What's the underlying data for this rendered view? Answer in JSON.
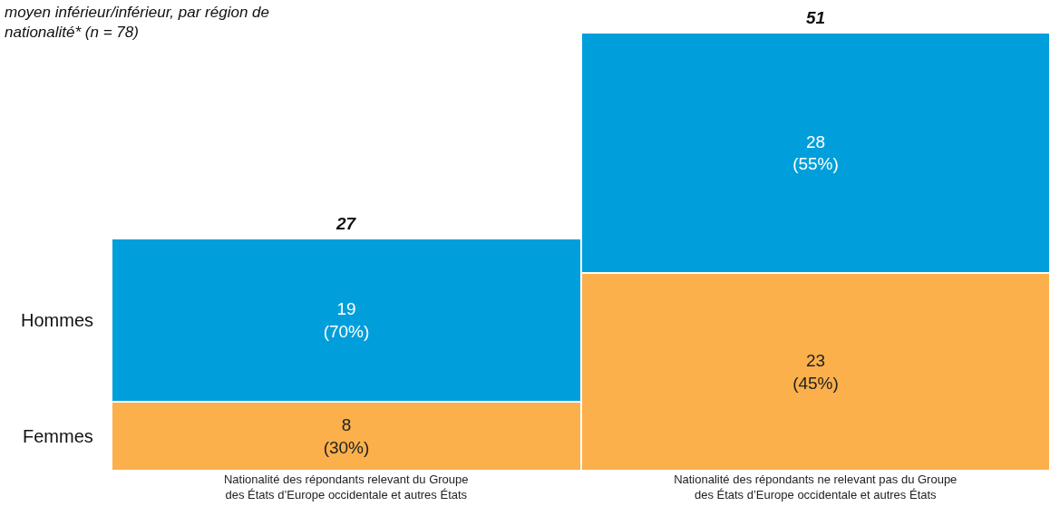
{
  "chart_data": {
    "type": "bar",
    "stacked": true,
    "title": "moyen inférieur/inférieur, par région de\nnationalité* (n = 78)",
    "categories": [
      "Nationalité des répondants relevant du Groupe\ndes États d’Europe occidentale et autres États",
      "Nationalité des répondants ne relevant pas du Groupe\ndes États d’Europe occidentale et autres États"
    ],
    "series": [
      {
        "name": "Femmes",
        "color": "#fbb04b",
        "values": [
          8,
          23
        ],
        "value_labels": [
          "8\n(30%)",
          "23\n(45%)"
        ]
      },
      {
        "name": "Hommes",
        "color": "#009fdb",
        "values": [
          19,
          28
        ],
        "value_labels": [
          "19\n(70%)",
          "28\n(55%)"
        ]
      }
    ],
    "totals": [
      "27",
      "51"
    ],
    "ylim": [
      0,
      51
    ],
    "legend": false
  }
}
